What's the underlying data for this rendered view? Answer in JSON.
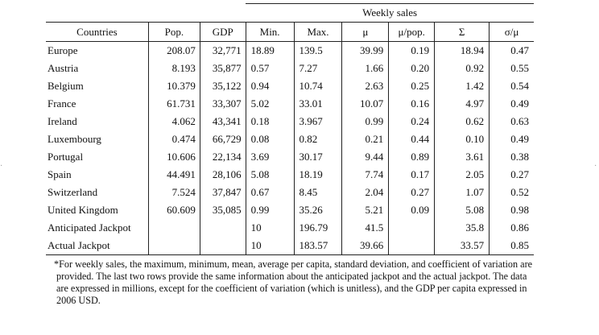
{
  "table": {
    "group_header": "Weekly sales",
    "columns": [
      "Countries",
      "Pop.",
      "GDP",
      "Min.",
      "Max.",
      "μ",
      "μ/pop.",
      "Σ",
      "σ/μ"
    ],
    "rows": [
      [
        "Europe",
        "208.07",
        "32,771",
        "18.89",
        "139.5",
        "39.99",
        "0.19",
        "18.94",
        "0.47"
      ],
      [
        "Austria",
        "8.193",
        "35,877",
        "0.57",
        "7.27",
        "1.66",
        "0.20",
        "0.92",
        "0.55"
      ],
      [
        "Belgium",
        "10.379",
        "35,122",
        "0.94",
        "10.74",
        "2.63",
        "0.25",
        "1.42",
        "0.54"
      ],
      [
        "France",
        "61.731",
        "33,307",
        "5.02",
        "33.01",
        "10.07",
        "0.16",
        "4.97",
        "0.49"
      ],
      [
        "Ireland",
        "4.062",
        "43,341",
        "0.18",
        "3.967",
        "0.99",
        "0.24",
        "0.62",
        "0.63"
      ],
      [
        "Luxembourg",
        "0.474",
        "66,729",
        "0.08",
        "0.82",
        "0.21",
        "0.44",
        "0.10",
        "0.49"
      ],
      [
        "Portugal",
        "10.606",
        "22,134",
        "3.69",
        "30.17",
        "9.44",
        "0.89",
        "3.61",
        "0.38"
      ],
      [
        "Spain",
        "44.491",
        "28,106",
        "5.08",
        "18.19",
        "7.74",
        "0.17",
        "2.05",
        "0.27"
      ],
      [
        "Switzerland",
        "7.524",
        "37,847",
        "0.67",
        "8.45",
        "2.04",
        "0.27",
        "1.07",
        "0.52"
      ],
      [
        "United Kingdom",
        "60.609",
        "35,085",
        "0.99",
        "35.26",
        "5.21",
        "0.09",
        "5.08",
        "0.98"
      ],
      [
        "Anticipated Jackpot",
        "",
        "",
        "10",
        "196.79",
        "41.5",
        "",
        "35.8",
        "0.86"
      ],
      [
        "Actual Jackpot",
        "",
        "",
        "10",
        "183.57",
        "39.66",
        "",
        "33.57",
        "0.85"
      ]
    ]
  },
  "footnote": "*For weekly sales, the maximum, minimum, mean, average per capita, standard deviation, and coefficient of variation are provided. The last two rows provide the same information about the anticipated jackpot and the actual jackpot. The data are expressed in millions, except for the coefficient of variation (which is unitless), and the GDP per capita expressed in 2006 USD."
}
